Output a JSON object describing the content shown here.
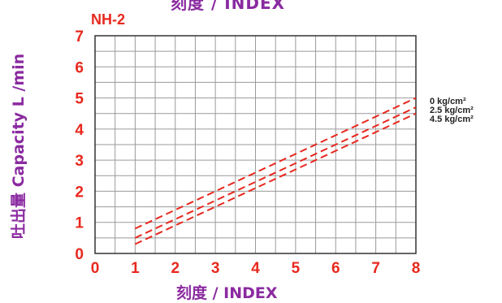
{
  "header": {
    "top_title": "刻度 / INDEX",
    "model": "NH-2"
  },
  "chart_data": {
    "type": "line",
    "title": "NH-2",
    "xlabel": "刻度 / INDEX",
    "ylabel": "吐出量 Capacity L /min",
    "xlim": [
      0,
      8
    ],
    "ylim": [
      0,
      7
    ],
    "x_ticks": [
      "0",
      "1",
      "2",
      "3",
      "4",
      "5",
      "6",
      "7",
      "8"
    ],
    "y_ticks": [
      "0",
      "1",
      "2",
      "3",
      "4",
      "5",
      "6",
      "7"
    ],
    "grid": true,
    "legend_placement": "right",
    "series_color": "#e8281e",
    "series": [
      {
        "name": "0  kg/cm²",
        "x": [
          1,
          8
        ],
        "y": [
          0.8,
          5.0
        ]
      },
      {
        "name": "2.5 kg/cm²",
        "x": [
          1,
          8
        ],
        "y": [
          0.5,
          4.7
        ]
      },
      {
        "name": "4.5 kg/cm²",
        "x": [
          1,
          8
        ],
        "y": [
          0.3,
          4.5
        ]
      }
    ]
  }
}
